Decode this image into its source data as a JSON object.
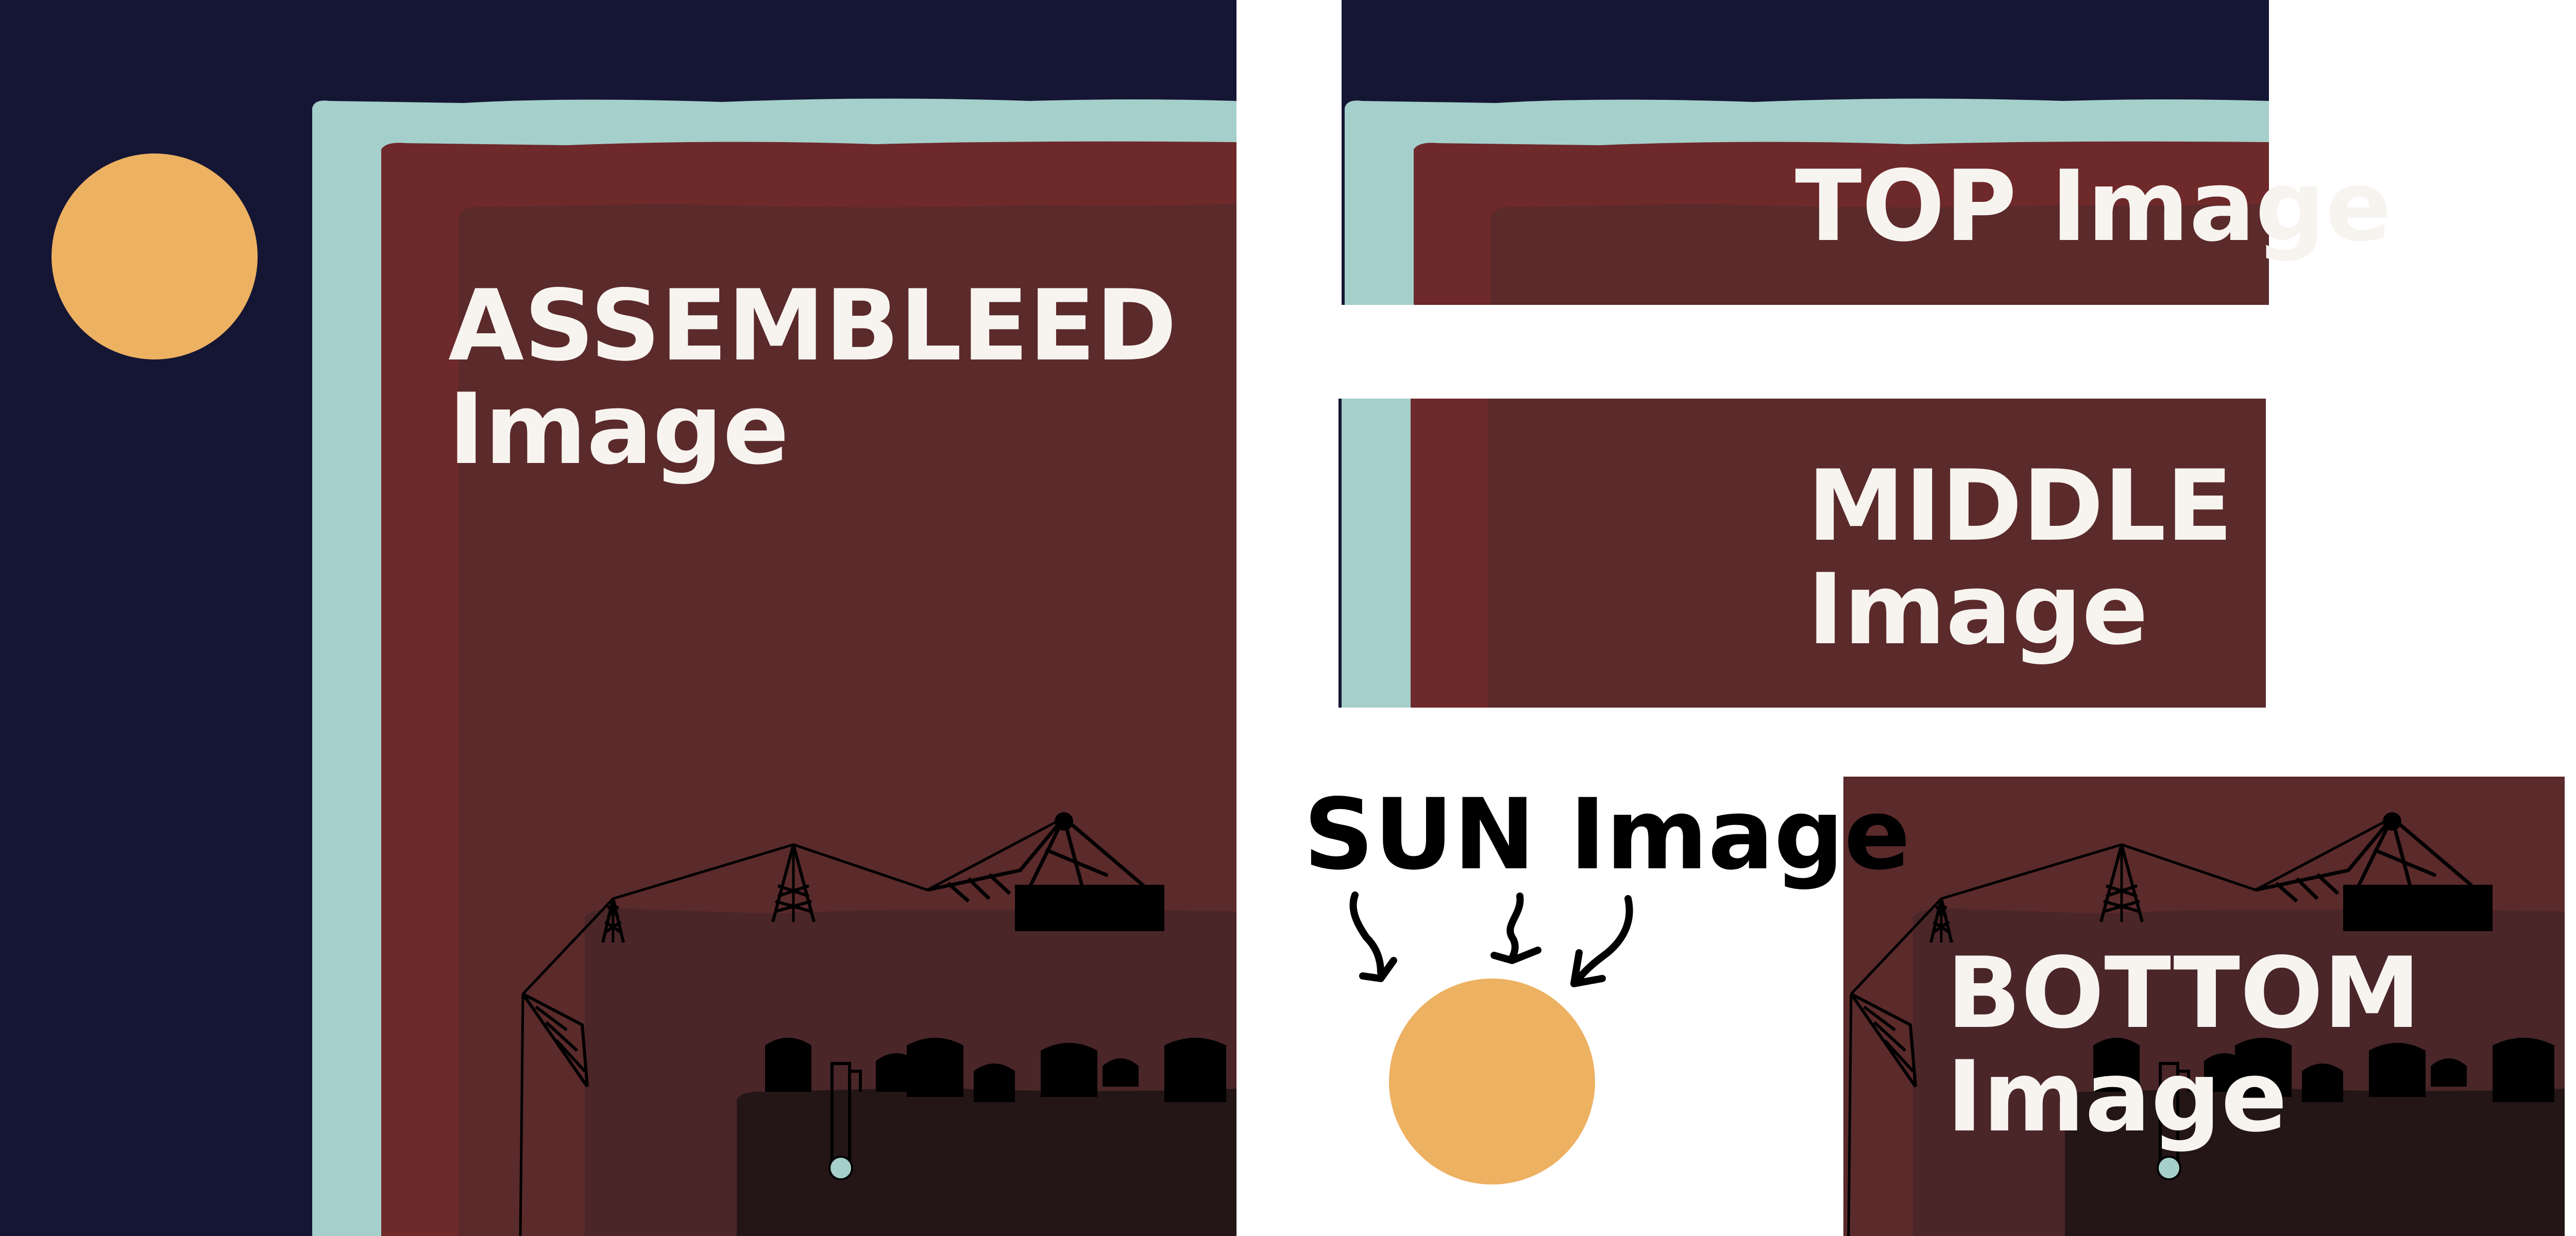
{
  "labels": {
    "assembled": [
      "ASSEMBLEED",
      "Image"
    ],
    "top": "TOP Image",
    "middle": [
      "MIDDLE",
      "Image"
    ],
    "sun": "SUN Image",
    "bottom": [
      "BOTTOM",
      "Image"
    ]
  },
  "colors": {
    "night_sky": "#151634",
    "frame_teal": "#a5cfcb",
    "outer_red": "#6e292b",
    "inner_red": "#5b2a2b",
    "band_red": "#4a2628",
    "ground": "#241516",
    "sun": "#edb162",
    "ink": "#000000",
    "label_light": "#f7f4f0",
    "label_dark": "#000000",
    "background": "#ffffff"
  }
}
